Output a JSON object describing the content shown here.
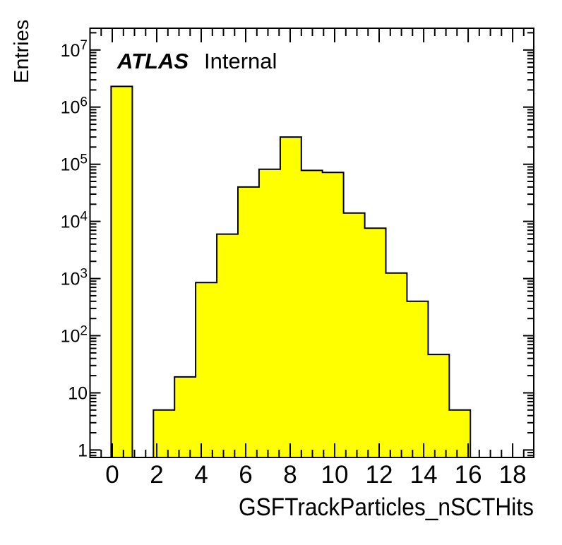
{
  "plot": {
    "watermark": {
      "bold": "ATLAS",
      "regular": "Internal"
    },
    "y_axis_title": "Entries",
    "x_axis_title": "GSFTrackParticles_nSCTHits",
    "colors": {
      "fill": "#ffff00",
      "line": "#000000",
      "background": "#ffffff"
    }
  },
  "chart_data": {
    "type": "bar",
    "title": "",
    "xlabel": "GSFTrackParticles_nSCTHits",
    "ylabel": "Entries",
    "y_scale": "log",
    "grid": false,
    "legend_position": "none",
    "x_range": [
      -1,
      18.95
    ],
    "y_range": [
      0.74,
      24000000
    ],
    "bin_width": 0.95,
    "bin_offset": -0.05,
    "x": [
      0,
      1,
      2,
      3,
      4,
      5,
      6,
      7,
      8,
      9,
      10,
      11,
      12,
      13,
      14,
      15,
      16
    ],
    "values": [
      2300000,
      0,
      5,
      19,
      850,
      6000,
      40000,
      82000,
      300000,
      78000,
      72000,
      14000,
      7600,
      1250,
      400,
      47,
      5
    ],
    "x_major_tick_values": [
      0,
      2,
      4,
      6,
      8,
      10,
      12,
      14,
      16,
      18
    ],
    "x_tick_labels": [
      "0",
      "2",
      "4",
      "6",
      "8",
      "10",
      "12",
      "14",
      "16",
      "18"
    ],
    "x_minor_step": 0.5,
    "y_tick_labels": [
      "10^7",
      "10^6",
      "10^5",
      "10^4",
      "10^3",
      "10^2",
      "10",
      "1"
    ],
    "y_tick_exponents": [
      7,
      6,
      5,
      4,
      3,
      2,
      1,
      0
    ]
  }
}
